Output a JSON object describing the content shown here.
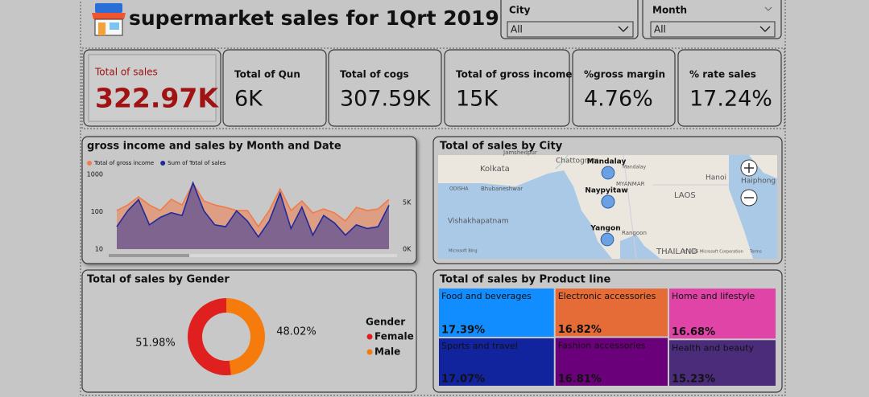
{
  "header": {
    "title": "supermarket sales for 1Qrt 2019"
  },
  "slicers": [
    {
      "label": "City",
      "value": "All"
    },
    {
      "label": "Month",
      "value": "All"
    }
  ],
  "cards": [
    {
      "label": "Total of sales",
      "value": "322.97K"
    },
    {
      "label": "Total of Qun",
      "value": "6K"
    },
    {
      "label": "Total of cogs",
      "value": "307.59K"
    },
    {
      "label": "Total of gross income",
      "value": "15K"
    },
    {
      "label": "%gross margin",
      "value": "4.76%"
    },
    {
      "label": "% rate sales",
      "value": "17.24%"
    }
  ],
  "chart_data": [
    {
      "type": "area",
      "title": "gross income and sales by Month and Date",
      "log_scale": true,
      "ylim": [
        10,
        1000
      ],
      "yticks": [
        10,
        100,
        1000
      ],
      "y2lim": [
        0,
        8000
      ],
      "y2ticks": [
        {
          "value": 0,
          "label": "0K"
        },
        {
          "value": 5000,
          "label": "5K"
        }
      ],
      "series": [
        {
          "name": "Total of gross income",
          "color": "#f07c4a",
          "values": [
            108,
            152,
            250,
            152,
            108,
            215,
            152,
            580,
            195,
            152,
            131,
            108,
            108,
            40,
            108,
            410,
            108,
            195,
            93,
            119,
            93,
            57,
            131,
            108,
            119,
            215
          ]
        },
        {
          "name": "Sum of Total of sales",
          "color": "#1f2a9c",
          "axis": "y2",
          "values": [
            2400,
            4100,
            5300,
            2600,
            3400,
            3900,
            3600,
            7100,
            4100,
            2600,
            2400,
            4100,
            3000,
            1300,
            3000,
            6000,
            2200,
            4500,
            1500,
            3600,
            2800,
            1500,
            2600,
            2200,
            2400,
            4700
          ]
        }
      ]
    },
    {
      "type": "map",
      "title": "Total of sales by City",
      "categories": [
        "Mandalay",
        "Naypyitaw",
        "Yangon"
      ],
      "values": [
        106197.67,
        110568.71,
        106200.37
      ],
      "color": "#4a90e2",
      "map_labels": [
        "Jamshedpur",
        "Kolkata",
        "ODISHA",
        "Bhubaneshwar",
        "Vishakhapatnam",
        "Chattogram",
        "Mandalay",
        "MYANMAR",
        "Rangoon",
        "LAOS",
        "Hanoi",
        "Haiphong",
        "THAILAND",
        "Microsoft Bing",
        "© 2025 Microsoft Corporation",
        "Terms"
      ]
    },
    {
      "type": "donut",
      "title": "Total of sales by Gender",
      "legend_title": "Gender",
      "categories": [
        "Female",
        "Male"
      ],
      "values": [
        51.98,
        48.02
      ],
      "value_labels": [
        "51.98%",
        "48.02%"
      ],
      "colors": [
        "#e0201f",
        "#f57c0c"
      ]
    },
    {
      "type": "treemap",
      "title": "Total of sales by Product line",
      "categories": [
        "Food and beverages",
        "Electronic accessories",
        "Home and lifestyle",
        "Sports and travel",
        "Fashion accessories",
        "Health and beauty"
      ],
      "values": [
        17.39,
        16.82,
        16.68,
        17.07,
        16.81,
        15.23
      ],
      "value_labels": [
        "17.39%",
        "16.82%",
        "16.68%",
        "17.07%",
        "16.81%",
        "15.23%"
      ],
      "colors": [
        "#118dff",
        "#e66c37",
        "#e044a7",
        "#12239e",
        "#6b007b",
        "#4b2c7a"
      ]
    }
  ]
}
